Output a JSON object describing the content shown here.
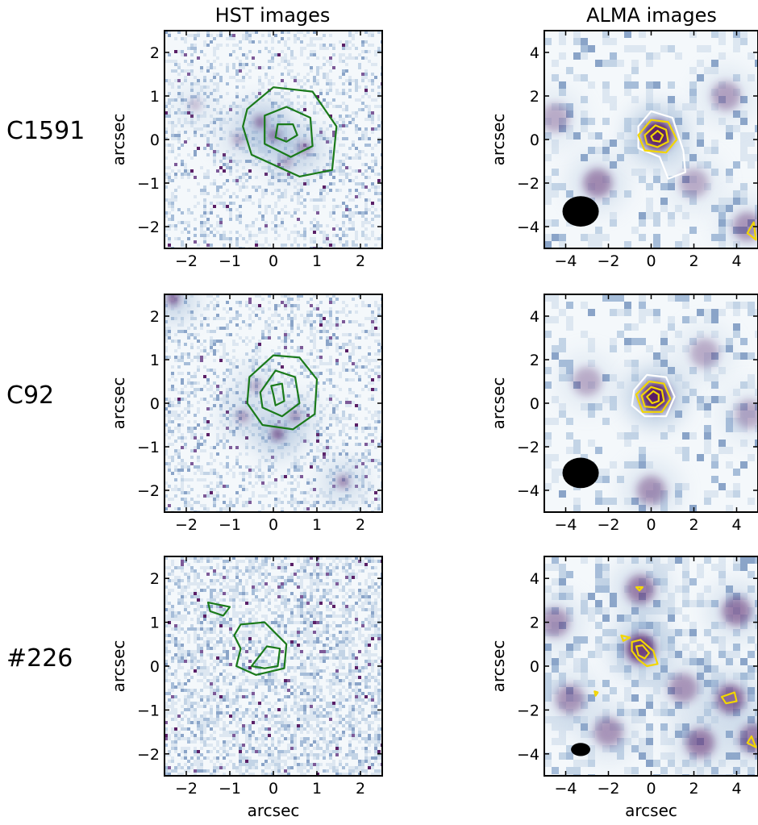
{
  "figure": {
    "column_titles": [
      "HST images",
      "ALMA images"
    ],
    "row_labels": [
      "C1591",
      "C92",
      "#226"
    ]
  },
  "colors": {
    "hst_contour": "#1a7a1a",
    "alma_contour": "#f2d600",
    "alma_outer_contour": "#ffffff",
    "map_low": "#f4f8fb",
    "map_mid": "#9fb8d6",
    "map_high": "#5a1f66",
    "beam": "#000000"
  },
  "chart_data": [
    {
      "type": "heatmap",
      "row": "C1591",
      "column": "HST images",
      "xlabel": "",
      "ylabel": "arcsec",
      "xlim": [
        -2.5,
        2.5
      ],
      "ylim": [
        -2.5,
        2.5
      ],
      "xticks": [
        -2,
        -1,
        0,
        1,
        2
      ],
      "yticks": [
        -2,
        -1,
        0,
        1,
        2
      ],
      "sources": [
        [
          0.0,
          0.1,
          0.9
        ],
        [
          -0.3,
          0.4,
          0.7
        ],
        [
          0.7,
          -0.2,
          0.6
        ],
        [
          -0.8,
          0.0,
          0.4
        ],
        [
          0.3,
          -0.5,
          0.4
        ],
        [
          -1.8,
          0.8,
          0.3
        ]
      ],
      "contours": [
        {
          "color": "hst",
          "points": [
            [
              -0.6,
              0.7
            ],
            [
              0.0,
              1.2
            ],
            [
              0.9,
              1.1
            ],
            [
              1.45,
              0.3
            ],
            [
              1.35,
              -0.7
            ],
            [
              0.6,
              -0.85
            ],
            [
              -0.5,
              -0.35
            ],
            [
              -0.7,
              0.3
            ]
          ]
        },
        {
          "color": "hst",
          "points": [
            [
              -0.2,
              0.55
            ],
            [
              0.3,
              0.75
            ],
            [
              0.85,
              0.5
            ],
            [
              0.9,
              -0.15
            ],
            [
              0.4,
              -0.4
            ],
            [
              -0.2,
              -0.1
            ]
          ]
        },
        {
          "color": "hst",
          "points": [
            [
              0.1,
              0.35
            ],
            [
              0.45,
              0.35
            ],
            [
              0.55,
              0.1
            ],
            [
              0.3,
              -0.05
            ],
            [
              0.05,
              0.05
            ]
          ]
        }
      ]
    },
    {
      "type": "heatmap",
      "row": "C1591",
      "column": "ALMA images",
      "xlabel": "",
      "ylabel": "arcsec",
      "xlim": [
        -5,
        5
      ],
      "ylim": [
        -5,
        5
      ],
      "xticks": [
        -4,
        -2,
        0,
        2,
        4
      ],
      "yticks": [
        -4,
        -2,
        0,
        2,
        4
      ],
      "sources": [
        [
          0.3,
          0.2,
          1.0
        ],
        [
          -2.5,
          -2.0,
          0.45
        ],
        [
          3.5,
          2.0,
          0.35
        ],
        [
          -4.5,
          1.0,
          0.3
        ],
        [
          2.0,
          -2.0,
          0.3
        ],
        [
          4.5,
          -4.0,
          0.4
        ]
      ],
      "beam": {
        "x": -3.3,
        "y": -3.3,
        "width": 1.7,
        "height": 1.4
      },
      "contours": [
        {
          "color": "white",
          "points": [
            [
              -0.6,
              0.6
            ],
            [
              0.0,
              1.3
            ],
            [
              1.0,
              1.0
            ],
            [
              1.5,
              -0.5
            ],
            [
              1.6,
              -1.5
            ],
            [
              0.8,
              -1.8
            ],
            [
              0.4,
              -0.8
            ],
            [
              -0.6,
              -0.4
            ]
          ]
        },
        {
          "color": "yellow",
          "points": [
            [
              -0.6,
              0.2
            ],
            [
              0.0,
              0.9
            ],
            [
              0.8,
              0.8
            ],
            [
              1.2,
              0.0
            ],
            [
              0.7,
              -0.6
            ],
            [
              -0.3,
              -0.5
            ]
          ]
        },
        {
          "color": "yellow",
          "points": [
            [
              -0.3,
              0.2
            ],
            [
              0.2,
              0.65
            ],
            [
              0.7,
              0.45
            ],
            [
              0.8,
              -0.1
            ],
            [
              0.3,
              -0.35
            ],
            [
              -0.2,
              -0.2
            ]
          ]
        },
        {
          "color": "yellow",
          "points": [
            [
              0.0,
              0.15
            ],
            [
              0.3,
              0.4
            ],
            [
              0.55,
              0.2
            ],
            [
              0.4,
              -0.1
            ],
            [
              0.1,
              -0.05
            ]
          ]
        },
        {
          "color": "yellow",
          "points": [
            [
              4.8,
              -3.8
            ],
            [
              4.5,
              -4.3
            ],
            [
              4.9,
              -4.6
            ]
          ]
        }
      ]
    },
    {
      "type": "heatmap",
      "row": "C92",
      "column": "HST images",
      "xlabel": "",
      "ylabel": "arcsec",
      "xlim": [
        -2.5,
        2.5
      ],
      "ylim": [
        -2.5,
        2.5
      ],
      "xticks": [
        -2,
        -1,
        0,
        1,
        2
      ],
      "yticks": [
        -2,
        -1,
        0,
        1,
        2
      ],
      "sources": [
        [
          0.1,
          -0.7,
          0.9
        ],
        [
          -2.3,
          2.4,
          0.8
        ],
        [
          0.5,
          -0.3,
          0.5
        ],
        [
          -0.7,
          -0.3,
          0.5
        ],
        [
          1.6,
          -1.8,
          0.6
        ],
        [
          -0.4,
          0.4,
          0.4
        ]
      ],
      "contours": [
        {
          "color": "hst",
          "points": [
            [
              -0.55,
              0.6
            ],
            [
              0.0,
              1.1
            ],
            [
              0.6,
              1.05
            ],
            [
              1.0,
              0.55
            ],
            [
              0.95,
              -0.25
            ],
            [
              0.45,
              -0.6
            ],
            [
              -0.25,
              -0.5
            ],
            [
              -0.6,
              0.0
            ]
          ]
        },
        {
          "color": "hst",
          "points": [
            [
              -0.3,
              0.25
            ],
            [
              0.05,
              0.75
            ],
            [
              0.5,
              0.6
            ],
            [
              0.6,
              0.0
            ],
            [
              0.2,
              -0.3
            ],
            [
              -0.25,
              -0.1
            ]
          ]
        },
        {
          "color": "hst",
          "points": [
            [
              -0.05,
              0.4
            ],
            [
              0.2,
              0.45
            ],
            [
              0.25,
              0.05
            ],
            [
              0.05,
              -0.05
            ],
            [
              0.0,
              0.2
            ]
          ]
        }
      ]
    },
    {
      "type": "heatmap",
      "row": "C92",
      "column": "ALMA images",
      "xlabel": "",
      "ylabel": "arcsec",
      "xlim": [
        -5,
        5
      ],
      "ylim": [
        -5,
        5
      ],
      "xticks": [
        -4,
        -2,
        0,
        2,
        4
      ],
      "yticks": [
        -4,
        -2,
        0,
        2,
        4
      ],
      "sources": [
        [
          0.2,
          0.3,
          1.0
        ],
        [
          0.0,
          -4.0,
          0.4
        ],
        [
          2.5,
          2.3,
          0.3
        ],
        [
          -3.0,
          1.0,
          0.3
        ],
        [
          4.6,
          -0.5,
          0.3
        ]
      ],
      "beam": {
        "x": -3.3,
        "y": -3.2,
        "width": 1.7,
        "height": 1.4
      },
      "contours": [
        {
          "color": "white",
          "points": [
            [
              -0.8,
              0.6
            ],
            [
              -0.2,
              1.3
            ],
            [
              0.7,
              1.2
            ],
            [
              1.1,
              0.3
            ],
            [
              0.7,
              -0.6
            ],
            [
              -0.3,
              -0.6
            ],
            [
              -0.9,
              -0.1
            ]
          ]
        },
        {
          "color": "yellow",
          "points": [
            [
              -0.7,
              0.4
            ],
            [
              -0.1,
              1.0
            ],
            [
              0.6,
              0.9
            ],
            [
              0.9,
              0.2
            ],
            [
              0.5,
              -0.4
            ],
            [
              -0.4,
              -0.4
            ]
          ]
        },
        {
          "color": "yellow",
          "points": [
            [
              -0.45,
              0.35
            ],
            [
              0.0,
              0.75
            ],
            [
              0.5,
              0.6
            ],
            [
              0.6,
              0.1
            ],
            [
              0.2,
              -0.2
            ],
            [
              -0.3,
              -0.15
            ]
          ]
        },
        {
          "color": "yellow",
          "points": [
            [
              -0.2,
              0.3
            ],
            [
              0.1,
              0.55
            ],
            [
              0.35,
              0.4
            ],
            [
              0.35,
              0.1
            ],
            [
              0.05,
              0.0
            ]
          ]
        }
      ]
    },
    {
      "type": "heatmap",
      "row": "#226",
      "column": "HST images",
      "xlabel": "arcsec",
      "ylabel": "arcsec",
      "xlim": [
        -2.5,
        2.5
      ],
      "ylim": [
        -2.5,
        2.5
      ],
      "xticks": [
        -2,
        -1,
        0,
        1,
        2
      ],
      "yticks": [
        -2,
        -1,
        0,
        1,
        2
      ],
      "sources": [],
      "contours": [
        {
          "color": "hst",
          "points": [
            [
              -1.5,
              1.45
            ],
            [
              -1.0,
              1.35
            ],
            [
              -1.15,
              1.15
            ],
            [
              -1.45,
              1.25
            ]
          ]
        },
        {
          "color": "hst",
          "points": [
            [
              -0.75,
              0.95
            ],
            [
              -0.2,
              1.0
            ],
            [
              0.3,
              0.5
            ],
            [
              0.25,
              -0.05
            ],
            [
              -0.4,
              -0.2
            ],
            [
              -0.85,
              0.0
            ],
            [
              -0.75,
              0.4
            ],
            [
              -0.9,
              0.7
            ]
          ]
        },
        {
          "color": "hst",
          "points": [
            [
              -0.5,
              0.0
            ],
            [
              -0.15,
              0.45
            ],
            [
              0.15,
              0.4
            ],
            [
              0.1,
              0.0
            ],
            [
              -0.2,
              -0.05
            ]
          ]
        }
      ]
    },
    {
      "type": "heatmap",
      "row": "#226",
      "column": "ALMA images",
      "xlabel": "arcsec",
      "ylabel": "arcsec",
      "xlim": [
        -5,
        5
      ],
      "ylim": [
        -5,
        5
      ],
      "xticks": [
        -4,
        -2,
        0,
        2,
        4
      ],
      "yticks": [
        -4,
        -2,
        0,
        2,
        4
      ],
      "sources": [
        [
          -0.5,
          0.8,
          0.8
        ],
        [
          3.7,
          -1.5,
          0.6
        ],
        [
          -0.5,
          3.5,
          0.5
        ],
        [
          2.3,
          -3.5,
          0.5
        ],
        [
          4.0,
          2.5,
          0.5
        ],
        [
          -3.8,
          -1.5,
          0.4
        ],
        [
          4.8,
          -3.3,
          0.5
        ],
        [
          -4.5,
          2.0,
          0.4
        ],
        [
          1.5,
          -1.0,
          0.4
        ],
        [
          -2.0,
          -3.0,
          0.4
        ]
      ],
      "beam": {
        "x": -3.3,
        "y": -3.8,
        "width": 0.9,
        "height": 0.6
      },
      "contours": [
        {
          "color": "yellow",
          "points": [
            [
              -0.9,
              1.1
            ],
            [
              -0.5,
              1.2
            ],
            [
              0.1,
              0.7
            ],
            [
              0.3,
              0.1
            ],
            [
              -0.2,
              0.0
            ],
            [
              -0.6,
              0.3
            ],
            [
              -0.9,
              0.7
            ]
          ]
        },
        {
          "color": "yellow",
          "points": [
            [
              -0.7,
              0.9
            ],
            [
              -0.4,
              0.95
            ],
            [
              -0.1,
              0.6
            ],
            [
              -0.3,
              0.35
            ],
            [
              -0.6,
              0.5
            ]
          ]
        },
        {
          "color": "yellow",
          "points": [
            [
              -1.4,
              1.4
            ],
            [
              -1.0,
              1.3
            ],
            [
              -1.3,
              1.15
            ]
          ]
        },
        {
          "color": "yellow",
          "points": [
            [
              -0.7,
              3.6
            ],
            [
              -0.4,
              3.6
            ],
            [
              -0.55,
              3.45
            ]
          ]
        },
        {
          "color": "yellow",
          "points": [
            [
              3.3,
              -1.4
            ],
            [
              3.9,
              -1.2
            ],
            [
              4.0,
              -1.6
            ],
            [
              3.5,
              -1.7
            ]
          ]
        },
        {
          "color": "yellow",
          "points": [
            [
              4.7,
              -3.2
            ],
            [
              4.5,
              -3.5
            ],
            [
              4.9,
              -3.7
            ]
          ]
        },
        {
          "color": "yellow",
          "points": [
            [
              -2.65,
              -1.15
            ],
            [
              -2.5,
              -1.2
            ],
            [
              -2.6,
              -1.35
            ]
          ]
        }
      ]
    }
  ]
}
